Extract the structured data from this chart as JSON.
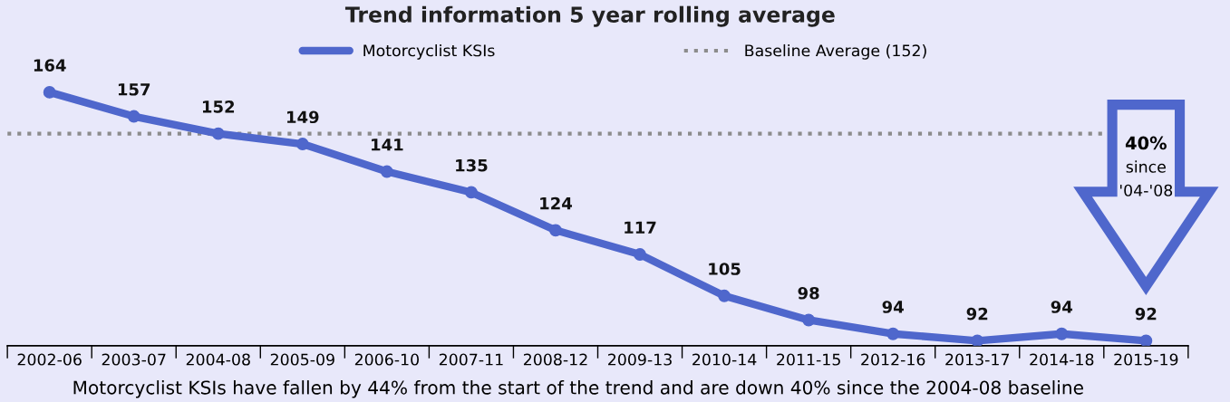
{
  "chart_data": {
    "type": "line",
    "title": "Trend information 5 year rolling average",
    "categories": [
      "2002-06",
      "2003-07",
      "2004-08",
      "2005-09",
      "2006-10",
      "2007-11",
      "2008-12",
      "2009-13",
      "2010-14",
      "2011-15",
      "2012-16",
      "2013-17",
      "2014-18",
      "2015-19"
    ],
    "series": [
      {
        "name": "Motorcyclist KSIs",
        "color": "#4f67cc",
        "values": [
          164,
          157,
          152,
          149,
          141,
          135,
          124,
          117,
          105,
          98,
          94,
          92,
          94,
          92
        ]
      }
    ],
    "ref_lines": [
      {
        "axis": "y",
        "value": 152,
        "label": "Baseline Average (152)",
        "color": "#8c8c8c",
        "line_style": "dotted"
      }
    ],
    "data_labels": true,
    "marker": "circle",
    "line_style": "solid",
    "legend": "top",
    "grid": false,
    "annotations": [
      "40%\nsince\n'04-'08",
      "Motorcyclist KSIs have fallen by 44% from the start of the trend and are down 40% since the 2004-08 baseline"
    ]
  }
}
